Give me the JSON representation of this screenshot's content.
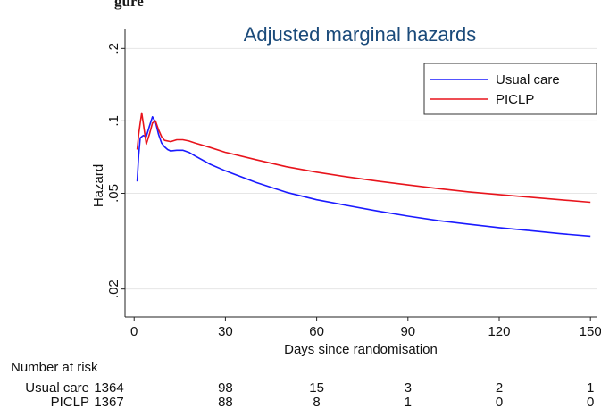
{
  "top_caption": "gure",
  "chart_data": {
    "type": "line",
    "title": "Adjusted marginal hazards",
    "xlabel": "Days since randomisation",
    "ylabel": "Hazard",
    "x_ticks": [
      0,
      30,
      60,
      90,
      120,
      150
    ],
    "y_ticks": [
      0.02,
      0.05,
      0.1,
      0.2
    ],
    "y_tick_labels": [
      ".02",
      ".05",
      ".1",
      ".2"
    ],
    "y_scale": "log",
    "xlim": [
      -3,
      152
    ],
    "ylim": [
      0.0153,
      0.24
    ],
    "grid": "horizontal",
    "legend_position": "top-right",
    "series": [
      {
        "name": "Usual care",
        "color": "#1a1aff",
        "points": [
          [
            1,
            0.056
          ],
          [
            1.5,
            0.072
          ],
          [
            2,
            0.085
          ],
          [
            3,
            0.087
          ],
          [
            4,
            0.086
          ],
          [
            5,
            0.095
          ],
          [
            6,
            0.104
          ],
          [
            7,
            0.099
          ],
          [
            8,
            0.088
          ],
          [
            9,
            0.081
          ],
          [
            10,
            0.078
          ],
          [
            11,
            0.076
          ],
          [
            12,
            0.075
          ],
          [
            14,
            0.0755
          ],
          [
            16,
            0.0755
          ],
          [
            18,
            0.074
          ],
          [
            20,
            0.0715
          ],
          [
            25,
            0.066
          ],
          [
            30,
            0.062
          ],
          [
            40,
            0.0555
          ],
          [
            50,
            0.0505
          ],
          [
            60,
            0.047
          ],
          [
            70,
            0.0445
          ],
          [
            80,
            0.0422
          ],
          [
            90,
            0.0402
          ],
          [
            100,
            0.0385
          ],
          [
            110,
            0.0372
          ],
          [
            120,
            0.036
          ],
          [
            130,
            0.035
          ],
          [
            140,
            0.034
          ],
          [
            150,
            0.0332
          ]
        ]
      },
      {
        "name": "PICLP",
        "color": "#e8141c",
        "points": [
          [
            1,
            0.076
          ],
          [
            1.5,
            0.088
          ],
          [
            2,
            0.098
          ],
          [
            2.5,
            0.108
          ],
          [
            3,
            0.098
          ],
          [
            4,
            0.08
          ],
          [
            5,
            0.088
          ],
          [
            6,
            0.098
          ],
          [
            7,
            0.1
          ],
          [
            8,
            0.092
          ],
          [
            9,
            0.086
          ],
          [
            10,
            0.083
          ],
          [
            12,
            0.082
          ],
          [
            14,
            0.0835
          ],
          [
            16,
            0.0835
          ],
          [
            18,
            0.0825
          ],
          [
            20,
            0.081
          ],
          [
            25,
            0.0775
          ],
          [
            30,
            0.074
          ],
          [
            40,
            0.069
          ],
          [
            50,
            0.0645
          ],
          [
            60,
            0.0612
          ],
          [
            70,
            0.0585
          ],
          [
            80,
            0.0562
          ],
          [
            90,
            0.0542
          ],
          [
            100,
            0.0523
          ],
          [
            110,
            0.0507
          ],
          [
            120,
            0.0494
          ],
          [
            130,
            0.0482
          ],
          [
            140,
            0.047
          ],
          [
            150,
            0.0459
          ]
        ]
      }
    ]
  },
  "risk_table": {
    "header": "Number at risk",
    "rows": [
      {
        "label": "Usual care",
        "values": [
          "1364",
          "98",
          "15",
          "3",
          "2",
          "1"
        ]
      },
      {
        "label": "PICLP",
        "values": [
          "1367",
          "88",
          "8",
          "1",
          "0",
          "0"
        ]
      }
    ]
  }
}
